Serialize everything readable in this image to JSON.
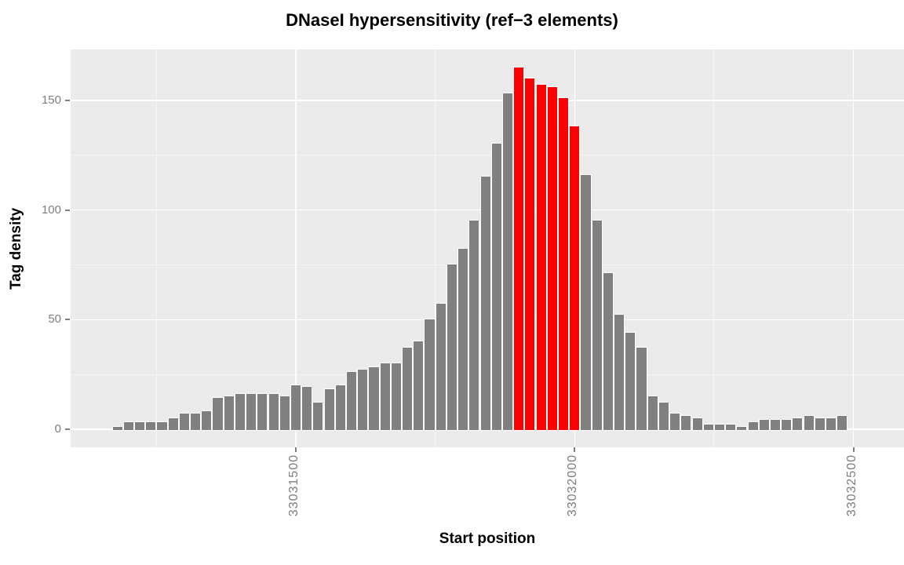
{
  "chart_data": {
    "type": "bar",
    "title": "DNaseI hypersensitivity (ref−3 elements)",
    "xlabel": "Start position",
    "ylabel": "Tag density",
    "x_tick_labels": [
      "33031500",
      "33032000",
      "33032500"
    ],
    "x_tick_positions": [
      33031500,
      33032000,
      33032500
    ],
    "x_minor_gridlines": [
      33031250,
      33031750,
      33032250
    ],
    "y_tick_labels": [
      "0",
      "50",
      "100",
      "150"
    ],
    "y_tick_positions": [
      0,
      50,
      100,
      150
    ],
    "y_minor_gridlines": [
      25,
      75,
      125
    ],
    "ylim": [
      0,
      165
    ],
    "grid": true,
    "legend_position": "none",
    "bin_start": 33031170,
    "bin_width": 20,
    "values": [
      1,
      3,
      3,
      3,
      3,
      5,
      7,
      7,
      8,
      14,
      15,
      16,
      16,
      16,
      16,
      15,
      20,
      19,
      12,
      18,
      20,
      26,
      27,
      28,
      30,
      30,
      37,
      40,
      50,
      57,
      75,
      82,
      95,
      115,
      130,
      153,
      165,
      160,
      157,
      156,
      151,
      138,
      116,
      95,
      71,
      52,
      44,
      37,
      15,
      12,
      7,
      6,
      5,
      2,
      2,
      2,
      1,
      3,
      4,
      4,
      4,
      5,
      6,
      5,
      5,
      6
    ],
    "highlight_indices": [
      36,
      37,
      38,
      39,
      40,
      41
    ],
    "bar_color": "#808080",
    "highlight_color": "#FF0000",
    "panel_background": "#EBEBEB",
    "gridline_color": "#FFFFFF",
    "axis_text_color": "#7E7E7E"
  }
}
